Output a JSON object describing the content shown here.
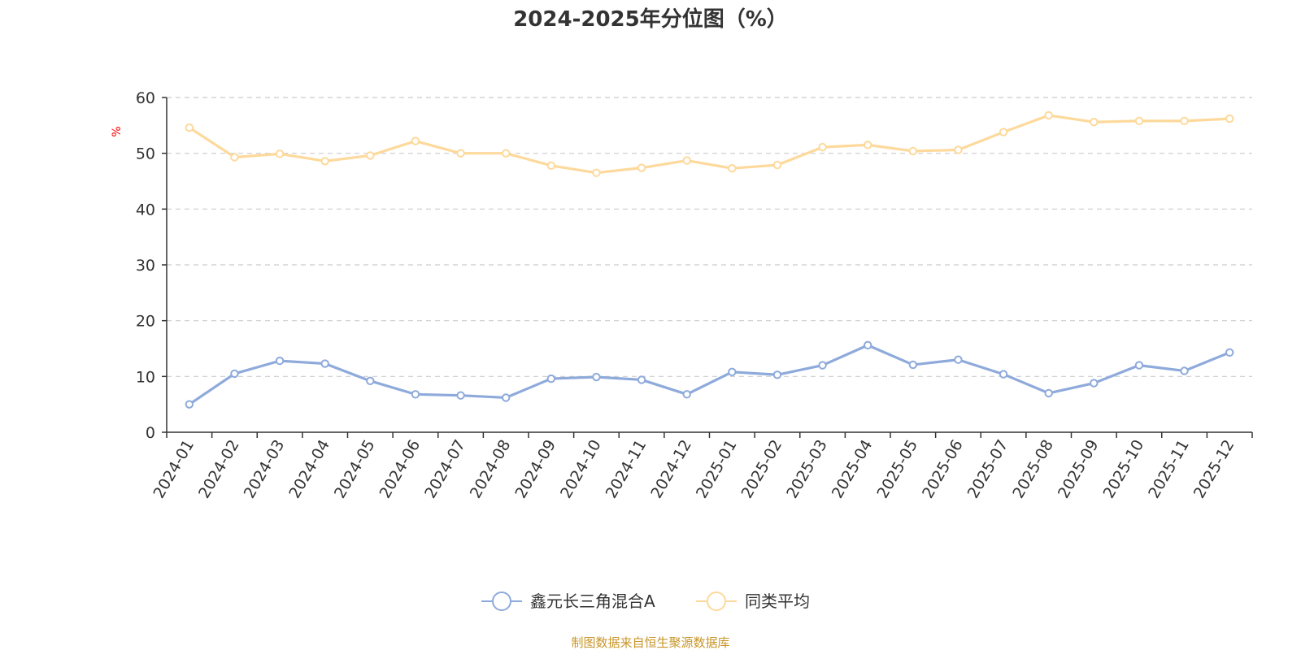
{
  "chart_data": {
    "type": "line",
    "title": "2024-2025年分位图（%）",
    "xlabel": "",
    "ylabel": "%",
    "ylim": [
      0,
      60
    ],
    "yticks": [
      0,
      10,
      20,
      30,
      40,
      50,
      60
    ],
    "grid": true,
    "legend_position": "bottom",
    "categories": [
      "2024-01",
      "2024-02",
      "2024-03",
      "2024-04",
      "2024-05",
      "2024-06",
      "2024-07",
      "2024-08",
      "2024-09",
      "2024-10",
      "2024-11",
      "2024-12",
      "2025-01",
      "2025-02",
      "2025-03",
      "2025-04",
      "2025-05",
      "2025-06",
      "2025-07",
      "2025-08",
      "2025-09",
      "2025-10",
      "2025-11",
      "2025-12"
    ],
    "series": [
      {
        "name": "鑫元长三角混合A",
        "color": "#8eaadb",
        "values": [
          5.0,
          10.5,
          12.8,
          12.3,
          9.2,
          6.8,
          6.6,
          6.2,
          9.6,
          9.9,
          9.4,
          6.8,
          10.8,
          10.3,
          12.0,
          15.6,
          12.1,
          13.0,
          10.4,
          7.0,
          8.8,
          12.0,
          11.0,
          14.3
        ]
      },
      {
        "name": "同类平均",
        "color": "#fdd99b",
        "values": [
          54.6,
          49.3,
          49.9,
          48.6,
          49.6,
          52.2,
          50.0,
          50.0,
          47.8,
          46.5,
          47.4,
          48.7,
          47.3,
          47.9,
          51.1,
          51.5,
          50.4,
          50.6,
          53.8,
          56.8,
          55.6,
          55.8,
          55.8,
          56.2
        ]
      }
    ],
    "source_note": "制图数据来自恒生聚源数据库"
  }
}
